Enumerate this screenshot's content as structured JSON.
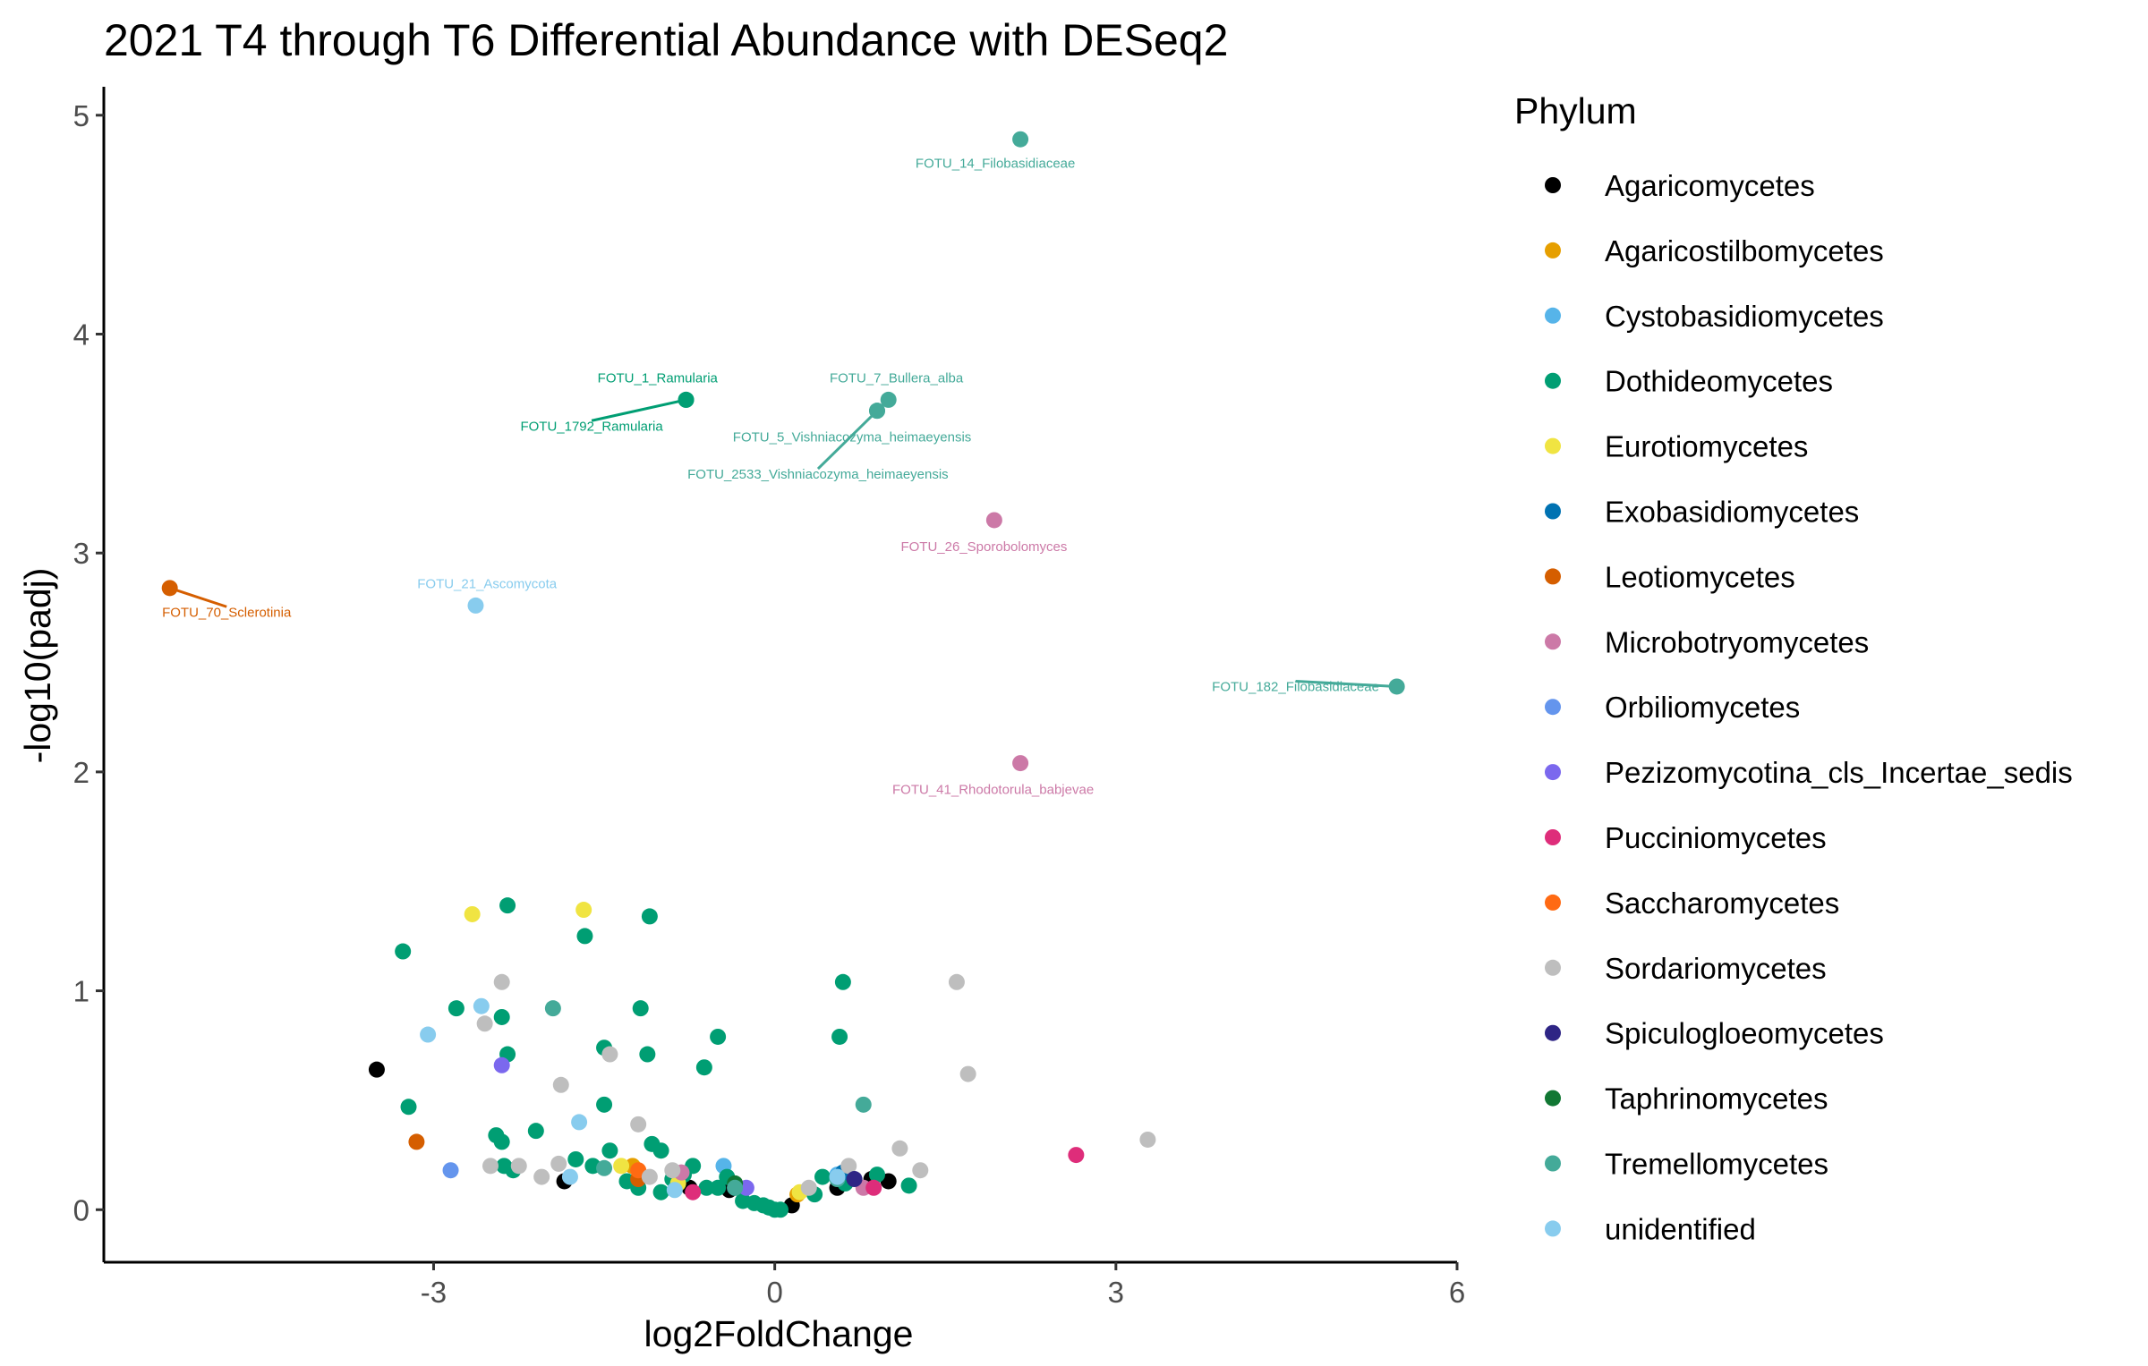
{
  "chart_data": {
    "type": "scatter",
    "title": "2021 T4 through T6 Differential Abundance with DESeq2",
    "xlabel": "log2FoldChange",
    "ylabel": "-log10(padj)",
    "xlim": [
      -5.9,
      6.0
    ],
    "ylim": [
      -0.24,
      5.13
    ],
    "x_ticks": [
      -3,
      0,
      3,
      6
    ],
    "x_tick_labels": [
      "-3",
      "0",
      "3",
      "6"
    ],
    "y_ticks": [
      0,
      1,
      2,
      3,
      4,
      5
    ],
    "y_tick_labels": [
      "0",
      "1",
      "2",
      "3",
      "4",
      "5"
    ],
    "grid": false,
    "legend": {
      "title": "Phylum",
      "placement": "right",
      "entries": [
        {
          "name": "Agaricomycetes",
          "color": "#000000"
        },
        {
          "name": "Agaricostilbomycetes",
          "color": "#E69F00"
        },
        {
          "name": "Cystobasidiomycetes",
          "color": "#56B4E9"
        },
        {
          "name": "Dothideomycetes",
          "color": "#009E73"
        },
        {
          "name": "Eurotiomycetes",
          "color": "#F0E442"
        },
        {
          "name": "Exobasidiomycetes",
          "color": "#0072B2"
        },
        {
          "name": "Leotiomycetes",
          "color": "#D55E00"
        },
        {
          "name": "Microbotryomycetes",
          "color": "#CC79A7"
        },
        {
          "name": "Orbiliomycetes",
          "color": "#6495ED"
        },
        {
          "name": "Pezizomycotina_cls_Incertae_sedis",
          "color": "#7B68EE"
        },
        {
          "name": "Pucciniomycetes",
          "color": "#DE2D7A"
        },
        {
          "name": "Saccharomycetes",
          "color": "#FF6A13"
        },
        {
          "name": "Sordariomycetes",
          "color": "#BEBEBE"
        },
        {
          "name": "Spiculogloeomycetes",
          "color": "#2E2585"
        },
        {
          "name": "Taphrinomycetes",
          "color": "#117733"
        },
        {
          "name": "Tremellomycetes",
          "color": "#44AA99"
        },
        {
          "name": "unidentified",
          "color": "#88CCEE"
        }
      ]
    },
    "labeled_points": [
      {
        "label": "FOTU_14_Filobasidiaceae",
        "phylum": "Tremellomycetes",
        "x": 2.16,
        "y": 4.89,
        "lx": 1.94,
        "ly": 4.78
      },
      {
        "label": "FOTU_1_Ramularia",
        "phylum": "Dothideomycetes",
        "x": -0.78,
        "y": 3.7,
        "lx": -1.03,
        "ly": 3.8
      },
      {
        "label": "FOTU_1792_Ramularia",
        "phylum": "Dothideomycetes",
        "x": -0.78,
        "y": 3.7,
        "lx": -1.61,
        "ly": 3.58
      },
      {
        "label": "FOTU_7_Bullera_alba",
        "phylum": "Tremellomycetes",
        "x": 1.0,
        "y": 3.7,
        "lx": 1.07,
        "ly": 3.8
      },
      {
        "label": "FOTU_5_Vishniacozyma_heimaeyensis",
        "phylum": "Tremellomycetes",
        "x": 0.9,
        "y": 3.65,
        "lx": 0.68,
        "ly": 3.53
      },
      {
        "label": "FOTU_2533_Vishniacozyma_heimaeyensis",
        "phylum": "Tremellomycetes",
        "x": 0.9,
        "y": 3.65,
        "lx": 0.38,
        "ly": 3.36
      },
      {
        "label": "FOTU_26_Sporobolomyces",
        "phylum": "Microbotryomycetes",
        "x": 1.93,
        "y": 3.15,
        "lx": 1.84,
        "ly": 3.03
      },
      {
        "label": "FOTU_21_Ascomycota",
        "phylum": "unidentified",
        "x": -2.63,
        "y": 2.76,
        "lx": -2.53,
        "ly": 2.86
      },
      {
        "label": "FOTU_70_Sclerotinia",
        "phylum": "Leotiomycetes",
        "x": -5.32,
        "y": 2.84,
        "lx": -4.82,
        "ly": 2.73
      },
      {
        "label": "FOTU_182_Filobasidiaceae",
        "phylum": "Tremellomycetes",
        "x": 5.47,
        "y": 2.39,
        "lx": 4.58,
        "ly": 2.39
      },
      {
        "label": "FOTU_41_Rhodotorula_babjevae",
        "phylum": "Microbotryomycetes",
        "x": 2.16,
        "y": 2.04,
        "lx": 1.92,
        "ly": 1.92
      }
    ],
    "points": [
      {
        "x": -3.5,
        "y": 0.64,
        "phylum": "Agaricomycetes"
      },
      {
        "x": -1.85,
        "y": 0.13,
        "phylum": "Agaricomycetes"
      },
      {
        "x": -0.75,
        "y": 0.1,
        "phylum": "Agaricomycetes"
      },
      {
        "x": -0.4,
        "y": 0.09,
        "phylum": "Agaricomycetes"
      },
      {
        "x": 0.15,
        "y": 0.02,
        "phylum": "Agaricomycetes"
      },
      {
        "x": 0.55,
        "y": 0.1,
        "phylum": "Agaricomycetes"
      },
      {
        "x": 0.85,
        "y": 0.14,
        "phylum": "Agaricomycetes"
      },
      {
        "x": 1.0,
        "y": 0.13,
        "phylum": "Agaricomycetes"
      },
      {
        "x": -1.25,
        "y": 0.2,
        "phylum": "Agaricostilbomycetes"
      },
      {
        "x": 0.2,
        "y": 0.07,
        "phylum": "Agaricostilbomycetes"
      },
      {
        "x": -0.45,
        "y": 0.2,
        "phylum": "Cystobasidiomycetes"
      },
      {
        "x": 0.55,
        "y": 0.16,
        "phylum": "Cystobasidiomycetes"
      },
      {
        "x": -3.27,
        "y": 1.18,
        "phylum": "Dothideomycetes"
      },
      {
        "x": -2.35,
        "y": 1.39,
        "phylum": "Dothideomycetes"
      },
      {
        "x": -1.67,
        "y": 1.25,
        "phylum": "Dothideomycetes"
      },
      {
        "x": -1.1,
        "y": 1.34,
        "phylum": "Dothideomycetes"
      },
      {
        "x": -2.8,
        "y": 0.92,
        "phylum": "Dothideomycetes"
      },
      {
        "x": -2.4,
        "y": 0.88,
        "phylum": "Dothideomycetes"
      },
      {
        "x": -2.35,
        "y": 0.71,
        "phylum": "Dothideomycetes"
      },
      {
        "x": -1.5,
        "y": 0.74,
        "phylum": "Dothideomycetes"
      },
      {
        "x": -1.18,
        "y": 0.92,
        "phylum": "Dothideomycetes"
      },
      {
        "x": -1.12,
        "y": 0.71,
        "phylum": "Dothideomycetes"
      },
      {
        "x": -0.5,
        "y": 0.79,
        "phylum": "Dothideomycetes"
      },
      {
        "x": -0.62,
        "y": 0.65,
        "phylum": "Dothideomycetes"
      },
      {
        "x": 0.6,
        "y": 1.04,
        "phylum": "Dothideomycetes"
      },
      {
        "x": 0.57,
        "y": 0.79,
        "phylum": "Dothideomycetes"
      },
      {
        "x": -3.22,
        "y": 0.47,
        "phylum": "Dothideomycetes"
      },
      {
        "x": -1.5,
        "y": 0.48,
        "phylum": "Dothideomycetes"
      },
      {
        "x": -2.45,
        "y": 0.34,
        "phylum": "Dothideomycetes"
      },
      {
        "x": -2.4,
        "y": 0.31,
        "phylum": "Dothideomycetes"
      },
      {
        "x": -2.1,
        "y": 0.36,
        "phylum": "Dothideomycetes"
      },
      {
        "x": -2.38,
        "y": 0.2,
        "phylum": "Dothideomycetes"
      },
      {
        "x": -2.3,
        "y": 0.18,
        "phylum": "Dothideomycetes"
      },
      {
        "x": -1.75,
        "y": 0.23,
        "phylum": "Dothideomycetes"
      },
      {
        "x": -1.6,
        "y": 0.2,
        "phylum": "Dothideomycetes"
      },
      {
        "x": -1.45,
        "y": 0.27,
        "phylum": "Dothideomycetes"
      },
      {
        "x": -1.3,
        "y": 0.13,
        "phylum": "Dothideomycetes"
      },
      {
        "x": -1.2,
        "y": 0.1,
        "phylum": "Dothideomycetes"
      },
      {
        "x": -1.08,
        "y": 0.3,
        "phylum": "Dothideomycetes"
      },
      {
        "x": -1.0,
        "y": 0.27,
        "phylum": "Dothideomycetes"
      },
      {
        "x": -1.0,
        "y": 0.08,
        "phylum": "Dothideomycetes"
      },
      {
        "x": -0.9,
        "y": 0.14,
        "phylum": "Dothideomycetes"
      },
      {
        "x": -0.8,
        "y": 0.16,
        "phylum": "Dothideomycetes"
      },
      {
        "x": -0.72,
        "y": 0.2,
        "phylum": "Dothideomycetes"
      },
      {
        "x": -0.6,
        "y": 0.1,
        "phylum": "Dothideomycetes"
      },
      {
        "x": -0.5,
        "y": 0.1,
        "phylum": "Dothideomycetes"
      },
      {
        "x": -0.42,
        "y": 0.15,
        "phylum": "Dothideomycetes"
      },
      {
        "x": -0.35,
        "y": 0.1,
        "phylum": "Dothideomycetes"
      },
      {
        "x": -0.28,
        "y": 0.04,
        "phylum": "Dothideomycetes"
      },
      {
        "x": -0.18,
        "y": 0.03,
        "phylum": "Dothideomycetes"
      },
      {
        "x": -0.1,
        "y": 0.02,
        "phylum": "Dothideomycetes"
      },
      {
        "x": -0.05,
        "y": 0.01,
        "phylum": "Dothideomycetes"
      },
      {
        "x": 0.0,
        "y": 0.0,
        "phylum": "Dothideomycetes"
      },
      {
        "x": 0.05,
        "y": 0.0,
        "phylum": "Dothideomycetes"
      },
      {
        "x": 0.35,
        "y": 0.07,
        "phylum": "Dothideomycetes"
      },
      {
        "x": 0.42,
        "y": 0.15,
        "phylum": "Dothideomycetes"
      },
      {
        "x": 0.62,
        "y": 0.12,
        "phylum": "Dothideomycetes"
      },
      {
        "x": 0.9,
        "y": 0.16,
        "phylum": "Dothideomycetes"
      },
      {
        "x": 1.18,
        "y": 0.11,
        "phylum": "Dothideomycetes"
      },
      {
        "x": -2.66,
        "y": 1.35,
        "phylum": "Eurotiomycetes"
      },
      {
        "x": -1.68,
        "y": 1.37,
        "phylum": "Eurotiomycetes"
      },
      {
        "x": -1.35,
        "y": 0.2,
        "phylum": "Eurotiomycetes"
      },
      {
        "x": -0.85,
        "y": 0.12,
        "phylum": "Eurotiomycetes"
      },
      {
        "x": 0.22,
        "y": 0.08,
        "phylum": "Eurotiomycetes"
      },
      {
        "x": 0.6,
        "y": 0.17,
        "phylum": "Exobasidiomycetes"
      },
      {
        "x": -3.15,
        "y": 0.31,
        "phylum": "Leotiomycetes"
      },
      {
        "x": -1.2,
        "y": 0.14,
        "phylum": "Leotiomycetes"
      },
      {
        "x": -0.82,
        "y": 0.17,
        "phylum": "Microbotryomycetes"
      },
      {
        "x": 0.78,
        "y": 0.1,
        "phylum": "Microbotryomycetes"
      },
      {
        "x": -2.85,
        "y": 0.18,
        "phylum": "Orbiliomycetes"
      },
      {
        "x": -2.4,
        "y": 0.66,
        "phylum": "Pezizomycotina_cls_Incertae_sedis"
      },
      {
        "x": -0.25,
        "y": 0.1,
        "phylum": "Pezizomycotina_cls_Incertae_sedis"
      },
      {
        "x": 2.65,
        "y": 0.25,
        "phylum": "Pucciniomycetes"
      },
      {
        "x": -0.72,
        "y": 0.08,
        "phylum": "Pucciniomycetes"
      },
      {
        "x": 0.87,
        "y": 0.1,
        "phylum": "Pucciniomycetes"
      },
      {
        "x": -1.2,
        "y": 0.18,
        "phylum": "Saccharomycetes"
      },
      {
        "x": -2.4,
        "y": 1.04,
        "phylum": "Sordariomycetes"
      },
      {
        "x": -2.55,
        "y": 0.85,
        "phylum": "Sordariomycetes"
      },
      {
        "x": -1.45,
        "y": 0.71,
        "phylum": "Sordariomycetes"
      },
      {
        "x": -1.88,
        "y": 0.57,
        "phylum": "Sordariomycetes"
      },
      {
        "x": -1.2,
        "y": 0.39,
        "phylum": "Sordariomycetes"
      },
      {
        "x": -2.5,
        "y": 0.2,
        "phylum": "Sordariomycetes"
      },
      {
        "x": -2.25,
        "y": 0.2,
        "phylum": "Sordariomycetes"
      },
      {
        "x": -2.05,
        "y": 0.15,
        "phylum": "Sordariomycetes"
      },
      {
        "x": -1.9,
        "y": 0.21,
        "phylum": "Sordariomycetes"
      },
      {
        "x": -1.1,
        "y": 0.15,
        "phylum": "Sordariomycetes"
      },
      {
        "x": -0.9,
        "y": 0.18,
        "phylum": "Sordariomycetes"
      },
      {
        "x": 0.3,
        "y": 0.1,
        "phylum": "Sordariomycetes"
      },
      {
        "x": 0.65,
        "y": 0.2,
        "phylum": "Sordariomycetes"
      },
      {
        "x": 1.1,
        "y": 0.28,
        "phylum": "Sordariomycetes"
      },
      {
        "x": 1.28,
        "y": 0.18,
        "phylum": "Sordariomycetes"
      },
      {
        "x": 1.6,
        "y": 1.04,
        "phylum": "Sordariomycetes"
      },
      {
        "x": 1.7,
        "y": 0.62,
        "phylum": "Sordariomycetes"
      },
      {
        "x": 3.28,
        "y": 0.32,
        "phylum": "Sordariomycetes"
      },
      {
        "x": 0.7,
        "y": 0.14,
        "phylum": "Spiculogloeomycetes"
      },
      {
        "x": -0.35,
        "y": 0.12,
        "phylum": "Taphrinomycetes"
      },
      {
        "x": -1.95,
        "y": 0.92,
        "phylum": "Tremellomycetes"
      },
      {
        "x": 0.78,
        "y": 0.48,
        "phylum": "Tremellomycetes"
      },
      {
        "x": -1.5,
        "y": 0.19,
        "phylum": "Tremellomycetes"
      },
      {
        "x": -0.35,
        "y": 0.1,
        "phylum": "Tremellomycetes"
      },
      {
        "x": 0.55,
        "y": 0.14,
        "phylum": "Tremellomycetes"
      },
      {
        "x": -2.58,
        "y": 0.93,
        "phylum": "unidentified"
      },
      {
        "x": -3.05,
        "y": 0.8,
        "phylum": "unidentified"
      },
      {
        "x": -1.72,
        "y": 0.4,
        "phylum": "unidentified"
      },
      {
        "x": -1.8,
        "y": 0.15,
        "phylum": "unidentified"
      },
      {
        "x": -0.88,
        "y": 0.09,
        "phylum": "unidentified"
      },
      {
        "x": 0.55,
        "y": 0.15,
        "phylum": "unidentified"
      }
    ]
  }
}
